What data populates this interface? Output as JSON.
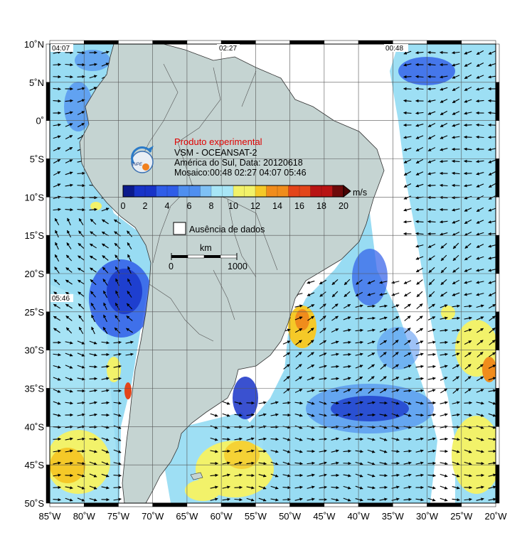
{
  "map": {
    "lon_ticks": [
      "85˚W",
      "80˚W",
      "75˚W",
      "70˚W",
      "65˚W",
      "60˚W",
      "55˚W",
      "50˚W",
      "45˚W",
      "40˚W",
      "35˚W",
      "30˚W",
      "25˚W",
      "20˚W"
    ],
    "lat_ticks": [
      "10˚N",
      "5˚N",
      "0˚",
      "5˚S",
      "10˚S",
      "15˚S",
      "20˚S",
      "25˚S",
      "30˚S",
      "35˚S",
      "40˚S",
      "45˚S",
      "50˚S"
    ],
    "pass_times": [
      "04:07",
      "02:27",
      "00:48",
      "05:46"
    ]
  },
  "legend": {
    "title": "Produto experimental",
    "line1": "VSM - OCEANSAT-2",
    "line2": "América do Sul, Data: 20120618",
    "line3": "Mosaico:00:48 02:27 04:07 05:46",
    "unit": "m/s",
    "ticks": [
      "0",
      "2",
      "4",
      "6",
      "8",
      "10",
      "12",
      "14",
      "16",
      "18",
      "20"
    ],
    "colors": [
      "#0b1a8c",
      "#1733c8",
      "#2f5de8",
      "#4f8ff0",
      "#7fc1f5",
      "#a8e6f7",
      "#f2f26a",
      "#f5c928",
      "#f08c1c",
      "#e3451a",
      "#b81414",
      "#6e0a0a"
    ],
    "no_data": "Ausência de dados",
    "scale_unit": "km",
    "scale_min": "0",
    "scale_max": "1000"
  },
  "logo": {
    "text": "INPE"
  },
  "colors": {
    "land": "#c5d4d2",
    "frame": "#000000",
    "ocean_low": "#8fd4f0"
  }
}
